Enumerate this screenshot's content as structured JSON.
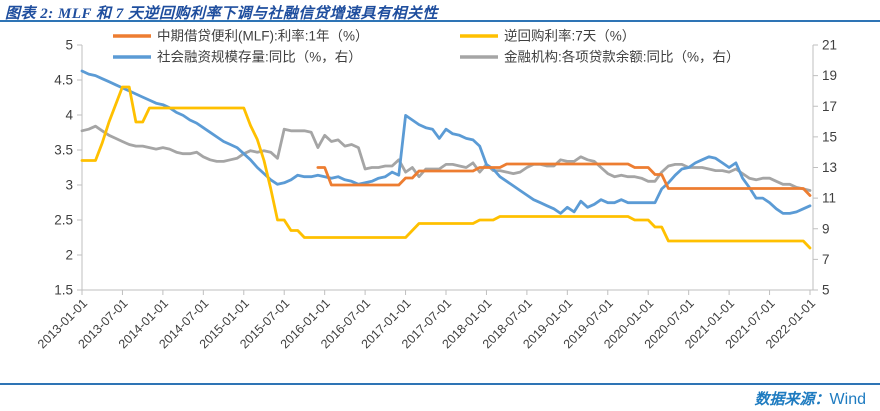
{
  "header": {
    "title": "图表 2: MLF 和 7 天逆回购利率下调与社融信贷增速具有相关性"
  },
  "footer": {
    "source_label": "数据来源：",
    "source_value": "Wind"
  },
  "colors": {
    "title_blue": "#1F4E9E",
    "rule_blue": "#2E74B5",
    "source_blue": "#1E7BC0",
    "axis_line": "#BFBFBF",
    "axis_text": "#3F3F3F",
    "mlf_orange": "#ED7D31",
    "repo_yellow": "#FFC000",
    "tsf_blue": "#5B9BD5",
    "loans_gray": "#A5A5A5"
  },
  "chart_data": {
    "type": "line",
    "title": "图表 2: MLF 和 7 天逆回购利率下调与社融信贷增速具有相关性",
    "grid": false,
    "legend_position": "top",
    "x_monthly_start": "2013-01",
    "x_monthly_end": "2022-01",
    "x_tick_labels": [
      "2013-01-01",
      "2013-07-01",
      "2014-01-01",
      "2014-07-01",
      "2015-01-01",
      "2015-07-01",
      "2016-01-01",
      "2016-07-01",
      "2017-01-01",
      "2017-07-01",
      "2018-01-01",
      "2018-07-01",
      "2019-01-01",
      "2019-07-01",
      "2020-01-01",
      "2020-07-01",
      "2021-01-01",
      "2021-07-01",
      "2022-01-01"
    ],
    "left_axis": {
      "min": 1.5,
      "max": 5,
      "ticks": [
        5,
        4.5,
        4,
        3.5,
        3,
        2.5,
        2,
        1.5
      ]
    },
    "right_axis": {
      "min": 5,
      "max": 21,
      "ticks": [
        21,
        19,
        17,
        15,
        13,
        11,
        9,
        7,
        5
      ]
    },
    "series": [
      {
        "key": "mlf",
        "name": "中期借贷便利(MLF):利率:1年（%）",
        "axis": "left",
        "color": "#ED7D31",
        "values": [
          null,
          null,
          null,
          null,
          null,
          null,
          null,
          null,
          null,
          null,
          null,
          null,
          null,
          null,
          null,
          null,
          null,
          null,
          null,
          null,
          null,
          null,
          null,
          null,
          null,
          null,
          null,
          null,
          null,
          null,
          null,
          null,
          null,
          null,
          null,
          3.25,
          3.25,
          3.0,
          3.0,
          3.0,
          3.0,
          3.0,
          3.0,
          3.0,
          3.0,
          3.0,
          3.0,
          3.0,
          3.1,
          3.1,
          3.2,
          3.2,
          3.2,
          3.2,
          3.2,
          3.2,
          3.2,
          3.2,
          3.2,
          3.25,
          3.25,
          3.25,
          3.25,
          3.3,
          3.3,
          3.3,
          3.3,
          3.3,
          3.3,
          3.3,
          3.3,
          3.3,
          3.3,
          3.3,
          3.3,
          3.3,
          3.3,
          3.3,
          3.3,
          3.3,
          3.3,
          3.3,
          3.25,
          3.25,
          3.25,
          3.15,
          3.15,
          2.95,
          2.95,
          2.95,
          2.95,
          2.95,
          2.95,
          2.95,
          2.95,
          2.95,
          2.95,
          2.95,
          2.95,
          2.95,
          2.95,
          2.95,
          2.95,
          2.95,
          2.95,
          2.95,
          2.95,
          2.95,
          2.85
        ]
      },
      {
        "key": "rr7d",
        "name": "逆回购利率:7天（%）",
        "axis": "left",
        "color": "#FFC000",
        "values": [
          3.35,
          3.35,
          3.35,
          3.6,
          3.9,
          4.15,
          4.4,
          4.4,
          3.9,
          3.9,
          4.1,
          4.1,
          4.1,
          4.1,
          4.1,
          4.1,
          4.1,
          4.1,
          4.1,
          4.1,
          4.1,
          4.1,
          4.1,
          4.1,
          4.1,
          3.85,
          3.65,
          3.35,
          2.95,
          2.5,
          2.5,
          2.35,
          2.35,
          2.25,
          2.25,
          2.25,
          2.25,
          2.25,
          2.25,
          2.25,
          2.25,
          2.25,
          2.25,
          2.25,
          2.25,
          2.25,
          2.25,
          2.25,
          2.25,
          2.35,
          2.45,
          2.45,
          2.45,
          2.45,
          2.45,
          2.45,
          2.45,
          2.45,
          2.45,
          2.5,
          2.5,
          2.5,
          2.55,
          2.55,
          2.55,
          2.55,
          2.55,
          2.55,
          2.55,
          2.55,
          2.55,
          2.55,
          2.55,
          2.55,
          2.55,
          2.55,
          2.55,
          2.55,
          2.55,
          2.55,
          2.55,
          2.55,
          2.5,
          2.5,
          2.5,
          2.4,
          2.4,
          2.2,
          2.2,
          2.2,
          2.2,
          2.2,
          2.2,
          2.2,
          2.2,
          2.2,
          2.2,
          2.2,
          2.2,
          2.2,
          2.2,
          2.2,
          2.2,
          2.2,
          2.2,
          2.2,
          2.2,
          2.2,
          2.1
        ]
      },
      {
        "key": "tsf",
        "name": "社会融资规模存量:同比（%，右）",
        "axis": "right",
        "color": "#5B9BD5",
        "values": [
          19.3,
          19.1,
          19.0,
          18.8,
          18.6,
          18.4,
          18.2,
          18.0,
          17.8,
          17.6,
          17.4,
          17.2,
          17.1,
          16.9,
          16.6,
          16.4,
          16.1,
          15.9,
          15.6,
          15.3,
          15.0,
          14.7,
          14.5,
          14.3,
          13.9,
          13.5,
          13.0,
          12.6,
          12.2,
          11.9,
          12.0,
          12.2,
          12.5,
          12.4,
          12.4,
          12.5,
          12.4,
          12.3,
          12.4,
          12.2,
          12.1,
          11.9,
          12.0,
          12.1,
          12.3,
          12.4,
          12.7,
          12.5,
          16.4,
          16.1,
          15.8,
          15.6,
          15.5,
          14.9,
          15.5,
          15.2,
          15.1,
          14.9,
          14.8,
          14.4,
          13.2,
          12.9,
          12.4,
          12.1,
          11.8,
          11.5,
          11.2,
          10.9,
          10.7,
          10.5,
          10.3,
          10.0,
          10.4,
          10.1,
          10.8,
          10.4,
          10.6,
          10.9,
          10.7,
          10.7,
          10.9,
          10.7,
          10.7,
          10.7,
          10.7,
          10.7,
          11.6,
          12.0,
          12.5,
          12.9,
          13.0,
          13.3,
          13.5,
          13.7,
          13.6,
          13.3,
          13.0,
          13.3,
          12.3,
          11.7,
          11.0,
          11.0,
          10.7,
          10.3,
          10.0,
          10.0,
          10.1,
          10.3,
          10.5
        ]
      },
      {
        "key": "loans",
        "name": "金融机构:各项贷款余额:同比（%，右）",
        "axis": "right",
        "color": "#A5A5A5",
        "values": [
          15.4,
          15.5,
          15.7,
          15.4,
          15.1,
          14.9,
          14.7,
          14.5,
          14.4,
          14.4,
          14.3,
          14.2,
          14.3,
          14.2,
          14.0,
          13.9,
          13.9,
          14.0,
          13.7,
          13.5,
          13.4,
          13.4,
          13.5,
          13.6,
          13.9,
          14.1,
          14.0,
          14.1,
          14.0,
          13.6,
          15.5,
          15.4,
          15.4,
          15.4,
          15.3,
          14.3,
          15.1,
          14.7,
          14.8,
          14.4,
          14.5,
          14.3,
          12.9,
          13.0,
          13.0,
          13.1,
          13.1,
          13.5,
          12.7,
          13.0,
          12.4,
          12.9,
          12.9,
          12.9,
          13.2,
          13.2,
          13.1,
          13.0,
          13.3,
          12.7,
          13.2,
          12.8,
          12.8,
          12.7,
          12.6,
          12.7,
          13.0,
          13.2,
          13.2,
          13.1,
          13.1,
          13.5,
          13.4,
          13.4,
          13.7,
          13.5,
          13.4,
          13.0,
          12.6,
          12.4,
          12.5,
          12.4,
          12.4,
          12.3,
          12.1,
          12.1,
          12.7,
          13.1,
          13.2,
          13.2,
          13.0,
          13.0,
          13.0,
          12.9,
          12.8,
          12.8,
          12.7,
          12.9,
          12.6,
          12.3,
          12.2,
          12.3,
          12.3,
          12.1,
          11.9,
          11.9,
          11.7,
          11.6,
          11.5
        ]
      }
    ]
  }
}
